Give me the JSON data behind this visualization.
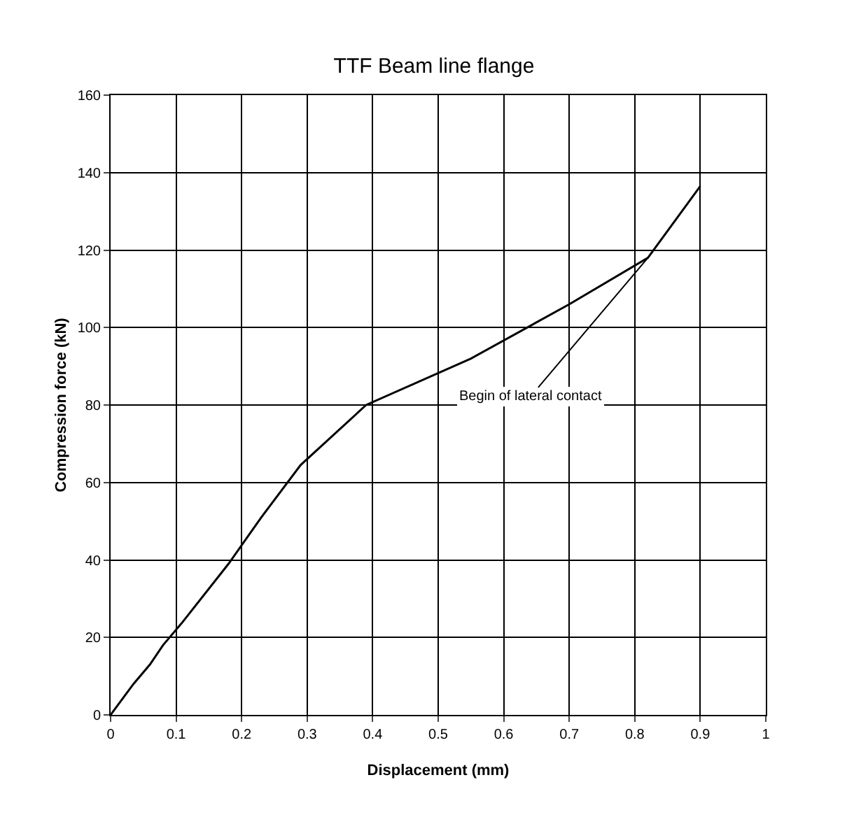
{
  "chart_data": {
    "type": "line",
    "title": "TTF Beam line flange",
    "xlabel": "Displacement (mm)",
    "ylabel": "Compression force (kN)",
    "x": [
      0,
      0.035,
      0.06,
      0.08,
      0.11,
      0.18,
      0.23,
      0.29,
      0.39,
      0.55,
      0.7,
      0.82,
      0.9
    ],
    "series": [
      {
        "color": "#000000",
        "values": [
          0,
          8,
          13,
          18,
          24,
          39,
          51,
          64.5,
          80,
          92,
          106,
          118,
          136.5
        ]
      }
    ],
    "xlim": [
      0,
      1
    ],
    "xticks": [
      0,
      0.1,
      0.2,
      0.3,
      0.4,
      0.5,
      0.6,
      0.7,
      0.8,
      0.9,
      1
    ],
    "ylim": [
      0,
      160
    ],
    "yticks": [
      0,
      20,
      40,
      60,
      80,
      100,
      120,
      140,
      160
    ],
    "grid": true,
    "marker": "none",
    "line_style": "solid",
    "annotations": [
      {
        "text": "Begin of lateral contact",
        "x": 0.82,
        "y": 118
      }
    ]
  }
}
